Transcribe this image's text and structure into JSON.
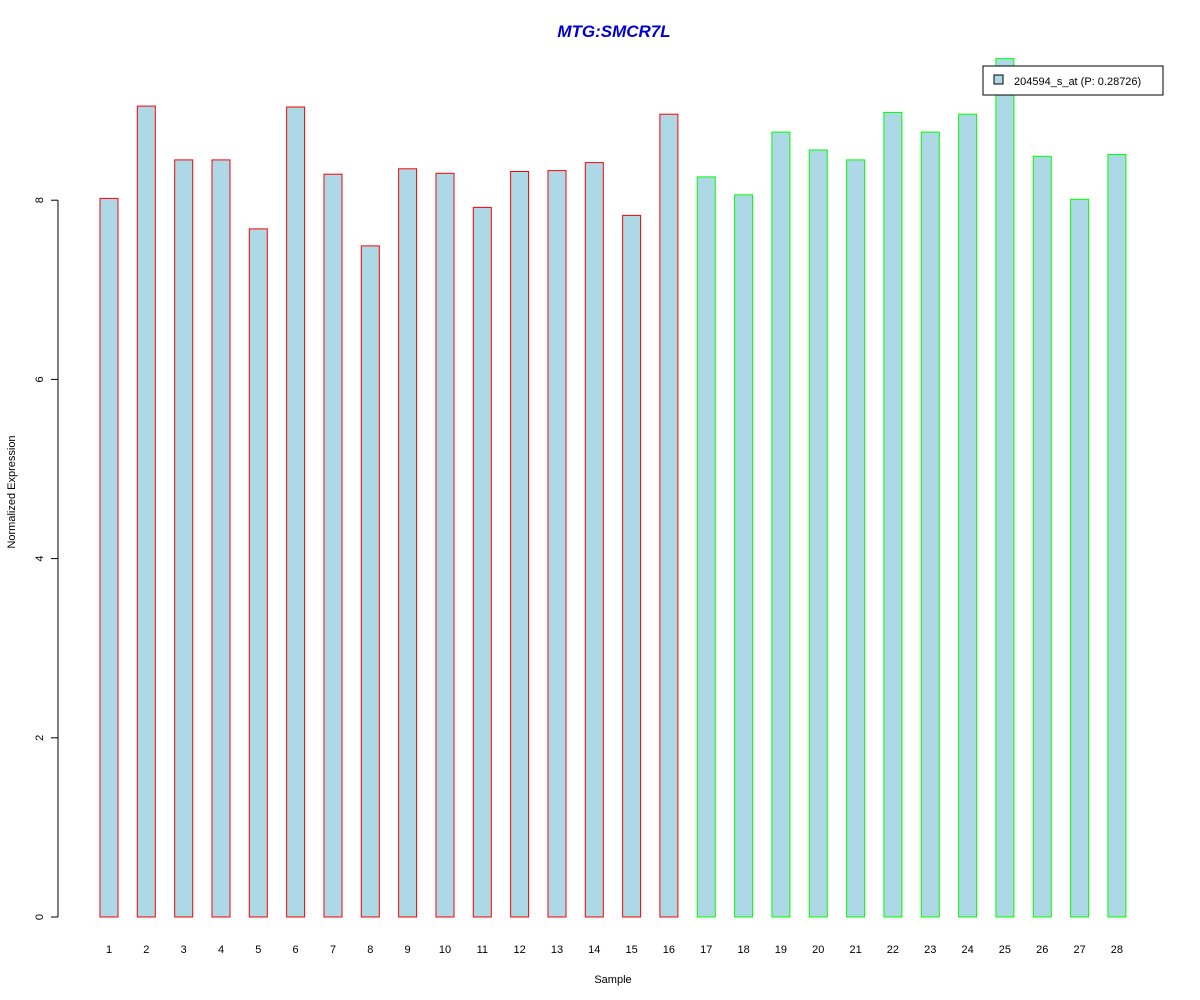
{
  "chart_data": {
    "type": "bar",
    "title": "MTG:SMCR7L",
    "xlabel": "Sample",
    "ylabel": "Normalized Expression",
    "categories": [
      "1",
      "2",
      "3",
      "4",
      "5",
      "6",
      "7",
      "8",
      "9",
      "10",
      "11",
      "12",
      "13",
      "14",
      "15",
      "16",
      "17",
      "18",
      "19",
      "20",
      "21",
      "22",
      "23",
      "24",
      "25",
      "26",
      "27",
      "28"
    ],
    "values": [
      8.02,
      9.05,
      8.45,
      8.45,
      7.68,
      9.04,
      8.29,
      7.49,
      8.35,
      8.3,
      7.92,
      8.32,
      8.33,
      8.42,
      7.83,
      8.96,
      8.26,
      8.06,
      8.76,
      8.56,
      8.45,
      8.98,
      8.76,
      8.96,
      9.58,
      8.49,
      8.01,
      8.51
    ],
    "group_edge_colors": [
      "#ff0000",
      "#ff0000",
      "#ff0000",
      "#ff0000",
      "#ff0000",
      "#ff0000",
      "#ff0000",
      "#ff0000",
      "#ff0000",
      "#ff0000",
      "#ff0000",
      "#ff0000",
      "#ff0000",
      "#ff0000",
      "#ff0000",
      "#ff0000",
      "#00ff00",
      "#00ff00",
      "#00ff00",
      "#00ff00",
      "#00ff00",
      "#00ff00",
      "#00ff00",
      "#00ff00",
      "#00ff00",
      "#00ff00",
      "#00ff00",
      "#00ff00"
    ],
    "bar_fill": "#add8e6",
    "title_color": "#0000cd",
    "yticks": [
      0,
      2,
      4,
      6,
      8
    ],
    "ylim": [
      0,
      9.58
    ],
    "grid": false,
    "legend": {
      "label": "204594_s_at (P: 0.28726)",
      "position": "top-right"
    }
  }
}
